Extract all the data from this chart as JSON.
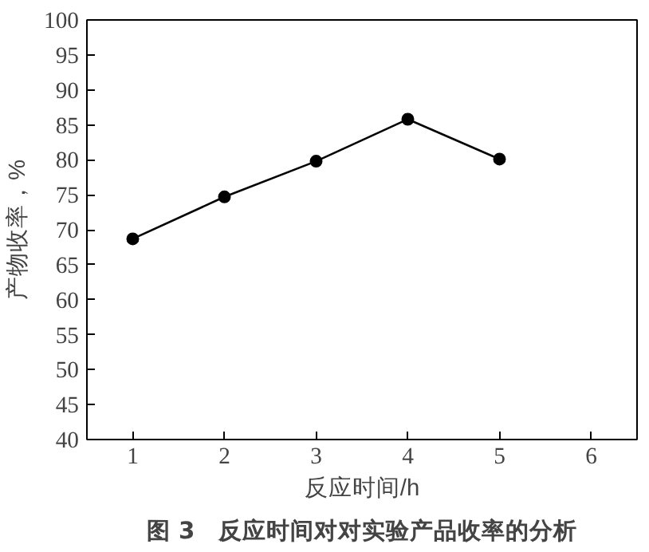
{
  "chart_data": {
    "type": "line",
    "title": "图 3　反应时间对对实验产品收率的分析",
    "xlabel": "反应时间/h",
    "ylabel": "产物收率，%",
    "x": [
      1,
      2,
      3,
      4,
      5
    ],
    "series": [
      {
        "color": "#000000",
        "values": [
          68.7,
          74.7,
          79.8,
          85.8,
          80.1
        ]
      }
    ],
    "xlim": [
      0.5,
      6.5
    ],
    "xticks": [
      1,
      2,
      3,
      4,
      5,
      6
    ],
    "ylim": [
      40,
      100
    ],
    "yticks": [
      40,
      45,
      50,
      55,
      60,
      65,
      70,
      75,
      80,
      85,
      90,
      95,
      100
    ],
    "grid": false,
    "marker": "circle",
    "line_style": "solid"
  }
}
